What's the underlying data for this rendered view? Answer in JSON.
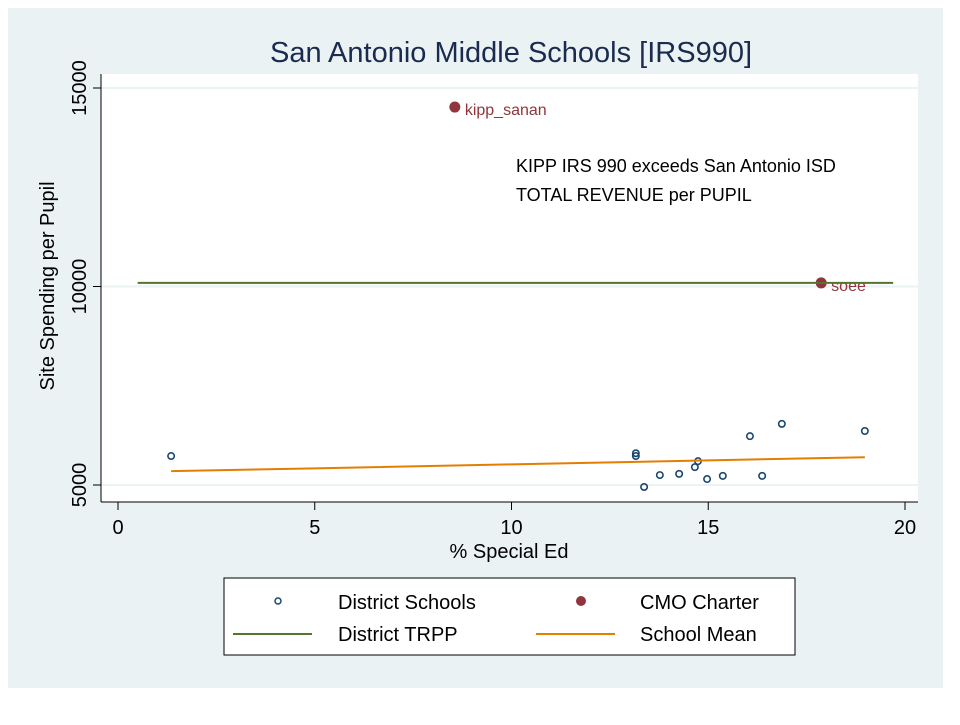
{
  "chart_data": {
    "type": "scatter",
    "title": "San Antonio Middle Schools [IRS990]",
    "xlabel": "% Special Ed",
    "ylabel": "Site Spending per Pupil",
    "xlim": [
      0,
      20
    ],
    "ylim": [
      5000,
      15000
    ],
    "xticks": [
      0,
      5,
      10,
      15,
      20
    ],
    "yticks": [
      5000,
      10000,
      15000
    ],
    "grid": true,
    "legend_placement": "bottom",
    "annotation": [
      "KIPP IRS 990 exceeds San Antonio ISD",
      "TOTAL REVENUE per PUPIL"
    ],
    "series": [
      {
        "name": "District Schools",
        "kind": "hollow-point",
        "color": "#1a476f",
        "points": [
          [
            1.35,
            5730
          ],
          [
            13.16,
            5800
          ],
          [
            13.16,
            5730
          ],
          [
            13.37,
            4950
          ],
          [
            13.77,
            5250
          ],
          [
            14.26,
            5280
          ],
          [
            14.66,
            5450
          ],
          [
            14.74,
            5600
          ],
          [
            14.97,
            5150
          ],
          [
            15.37,
            5230
          ],
          [
            16.06,
            6230
          ],
          [
            16.37,
            5230
          ],
          [
            16.87,
            6540
          ],
          [
            18.98,
            6360
          ]
        ]
      },
      {
        "name": "CMO Charter",
        "kind": "solid-point",
        "color": "#90353b",
        "points": [
          [
            8.56,
            14520,
            "kipp_sanan"
          ],
          [
            17.87,
            10090,
            "soee"
          ]
        ]
      },
      {
        "name": "District TRPP",
        "kind": "line",
        "color": "#55752f",
        "points": [
          [
            0.5,
            10090
          ],
          [
            19.7,
            10090
          ]
        ]
      },
      {
        "name": "School Mean",
        "kind": "line",
        "color": "#e37e00",
        "points": [
          [
            1.35,
            5350
          ],
          [
            5,
            5420
          ],
          [
            10,
            5520
          ],
          [
            15,
            5620
          ],
          [
            18.98,
            5700
          ]
        ]
      }
    ]
  }
}
